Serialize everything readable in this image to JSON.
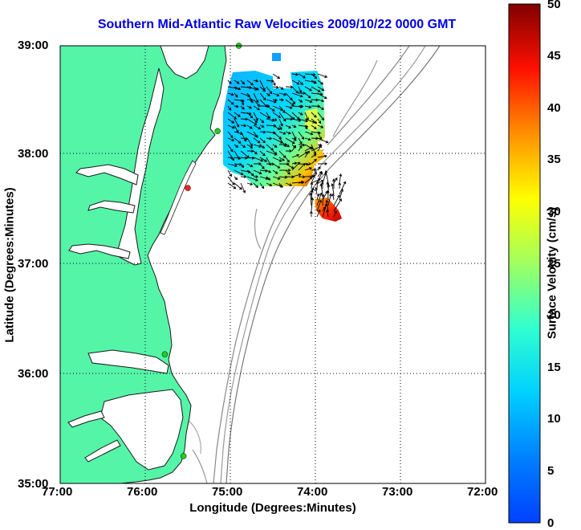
{
  "title": "Southern Mid-Atlantic Raw Velocities 2009/10/22 0000 GMT",
  "x_axis": {
    "label": "Longitude (Degrees:Minutes)",
    "ticks": [
      "77:00",
      "76:00",
      "75:00",
      "74:00",
      "73:00",
      "72:00"
    ]
  },
  "y_axis": {
    "label": "Latitude (Degrees:Minutes)",
    "ticks": [
      "39:00",
      "38:00",
      "37:00",
      "36:00",
      "35:00"
    ]
  },
  "colorbar": {
    "label": "Surface Velocity (cm/s)",
    "ticks": [
      "50",
      "45",
      "40",
      "35",
      "30",
      "25",
      "20",
      "15",
      "10",
      "5",
      "0"
    ],
    "min": 0,
    "max": 50,
    "colormap": "jet"
  },
  "colors": {
    "title": "#0000e0",
    "land": "#55f5a8",
    "station_marker": "#22cc22",
    "station_marker_active": "#ff2020",
    "bathymetry": "#888888"
  },
  "map_data": {
    "lon_range": [
      -77,
      -72
    ],
    "lat_range": [
      35,
      39
    ],
    "gridlines": "dotted",
    "stations": [
      {
        "lon": -74.9,
        "lat": 39.0,
        "status": "active"
      },
      {
        "lon": -75.15,
        "lat": 38.22,
        "status": "active"
      },
      {
        "lon": -75.5,
        "lat": 37.7,
        "status": "inactive"
      },
      {
        "lon": -75.77,
        "lat": 36.18,
        "status": "active"
      },
      {
        "lon": -75.55,
        "lat": 35.25,
        "status": "active"
      }
    ],
    "velocity_units": "cm/s"
  }
}
